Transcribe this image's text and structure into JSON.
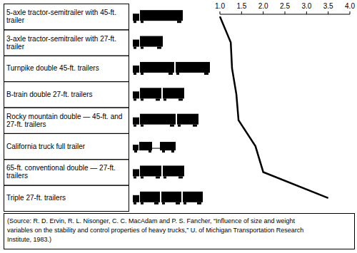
{
  "chart_data": {
    "type": "line",
    "orientation": "horizontal",
    "categories": [
      "5-axle tractor-semitrailer with 45-ft. trailer",
      "3-axle tractor-semitrailer with 27-ft. trailer",
      "Turnpike double 45-ft. trailers",
      "B-train double 27-ft. trailers",
      "Rocky mountain double — 45-ft. and 27-ft. trailers",
      "California truck full trailer",
      "65-ft. conventional double — 27-ft. trailers",
      "Triple 27-ft. trailers"
    ],
    "values": [
      1.0,
      1.25,
      1.28,
      1.38,
      1.43,
      1.82,
      2.0,
      3.5
    ],
    "color": "#000000",
    "xlim": [
      1,
      4
    ],
    "xticks": [
      {
        "value": 1,
        "label": "1.0"
      },
      {
        "value": 1.5,
        "label": "1.5"
      },
      {
        "value": 2,
        "label": "2.0"
      },
      {
        "value": 2.5,
        "label": "2.5"
      },
      {
        "value": 3,
        "label": "3.0"
      },
      {
        "value": 3.5,
        "label": "3.5"
      },
      {
        "value": 4,
        "label": "4.0"
      }
    ],
    "grid": false,
    "annotations": [
      "(Source: R. D. Ervin, R. L. Nisonger, C. C. MacAdam and P. S. Fancher, “Influence of size and weight",
      "variables on the stability and control properties of heavy trucks,” U. of Michigan Transportation Research",
      "Institute, 1983.)"
    ]
  }
}
